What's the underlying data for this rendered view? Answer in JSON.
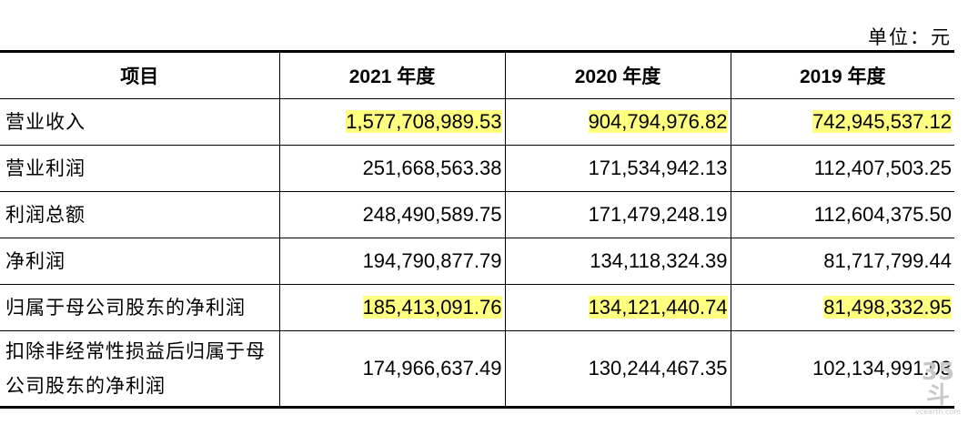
{
  "unit_label": "单位：元",
  "table": {
    "headers": [
      "项目",
      "2021 年度",
      "2020 年度",
      "2019 年度"
    ],
    "rows": [
      {
        "label": "营业收入",
        "values": [
          "1,577,708,989.53",
          "904,794,976.82",
          "742,945,537.12"
        ],
        "highlighted": true
      },
      {
        "label": "营业利润",
        "values": [
          "251,668,563.38",
          "171,534,942.13",
          "112,407,503.25"
        ],
        "highlighted": false
      },
      {
        "label": "利润总额",
        "values": [
          "248,490,589.75",
          "171,479,248.19",
          "112,604,375.50"
        ],
        "highlighted": false
      },
      {
        "label": "净利润",
        "values": [
          "194,790,877.79",
          "134,118,324.39",
          "81,717,799.44"
        ],
        "highlighted": false
      },
      {
        "label": "归属于母公司股东的净利润",
        "values": [
          "185,413,091.76",
          "134,121,440.74",
          "81,498,332.95"
        ],
        "highlighted": true
      },
      {
        "label": "扣除非经常性损益后归属于母公司股东的净利润",
        "values": [
          "174,966,637.49",
          "130,244,467.35",
          "102,134,991.03"
        ],
        "highlighted": false
      }
    ]
  },
  "watermark": {
    "big": "35斗",
    "small": "vcearth.com"
  },
  "colors": {
    "highlight": "#ffff80"
  }
}
